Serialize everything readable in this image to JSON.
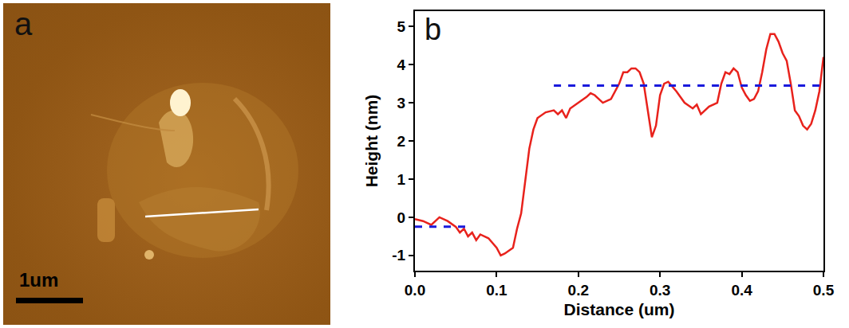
{
  "chart_data": {
    "type": "line",
    "panel_label": "b",
    "x_label": "Distance (um)",
    "y_label": "Height (nm)",
    "xlim": [
      0,
      0.5
    ],
    "ylim": [
      -1.4,
      5.4
    ],
    "xticks": [
      0.0,
      0.1,
      0.2,
      0.3,
      0.4,
      0.5
    ],
    "yticks": [
      -1,
      0,
      1,
      2,
      3,
      4,
      5
    ],
    "grid": false,
    "series": [
      {
        "color": "#e8221c",
        "line_style": "solid",
        "x": [
          0,
          0.01,
          0.02,
          0.03,
          0.04,
          0.05,
          0.055,
          0.06,
          0.065,
          0.07,
          0.075,
          0.08,
          0.09,
          0.1,
          0.105,
          0.11,
          0.12,
          0.125,
          0.13,
          0.135,
          0.14,
          0.145,
          0.15,
          0.16,
          0.17,
          0.175,
          0.18,
          0.185,
          0.19,
          0.2,
          0.21,
          0.215,
          0.22,
          0.23,
          0.24,
          0.25,
          0.255,
          0.26,
          0.265,
          0.27,
          0.275,
          0.28,
          0.285,
          0.29,
          0.295,
          0.3,
          0.305,
          0.31,
          0.32,
          0.33,
          0.34,
          0.345,
          0.35,
          0.36,
          0.37,
          0.375,
          0.38,
          0.385,
          0.39,
          0.395,
          0.4,
          0.405,
          0.41,
          0.415,
          0.42,
          0.425,
          0.43,
          0.435,
          0.44,
          0.445,
          0.45,
          0.455,
          0.46,
          0.465,
          0.47,
          0.475,
          0.48,
          0.485,
          0.49,
          0.495,
          0.5
        ],
        "values": [
          -0.05,
          -0.1,
          -0.2,
          0.0,
          -0.1,
          -0.25,
          -0.4,
          -0.3,
          -0.5,
          -0.4,
          -0.6,
          -0.45,
          -0.55,
          -0.8,
          -1.0,
          -0.95,
          -0.8,
          -0.3,
          0.1,
          0.9,
          1.8,
          2.3,
          2.6,
          2.75,
          2.8,
          2.7,
          2.8,
          2.6,
          2.85,
          3.0,
          3.15,
          3.25,
          3.2,
          3.0,
          3.1,
          3.5,
          3.8,
          3.8,
          3.9,
          3.9,
          3.8,
          3.5,
          2.8,
          2.1,
          2.4,
          3.2,
          3.5,
          3.55,
          3.3,
          3.0,
          2.85,
          2.95,
          2.7,
          2.9,
          3.0,
          3.5,
          3.8,
          3.75,
          3.9,
          3.8,
          3.4,
          3.2,
          3.05,
          3.1,
          3.3,
          3.8,
          4.4,
          4.8,
          4.8,
          4.6,
          4.3,
          4.1,
          3.5,
          2.8,
          2.65,
          2.4,
          2.3,
          2.45,
          2.8,
          3.3,
          4.2
        ]
      },
      {
        "color": "#1a1adc",
        "line_style": "dashed",
        "x": [
          0,
          0.07
        ],
        "values": [
          -0.25,
          -0.25
        ]
      },
      {
        "color": "#1a1adc",
        "line_style": "dashed",
        "x": [
          0.17,
          0.5
        ],
        "values": [
          3.45,
          3.45
        ]
      }
    ]
  },
  "image_panel": {
    "panel_label": "a",
    "scale_bar": "1um"
  }
}
